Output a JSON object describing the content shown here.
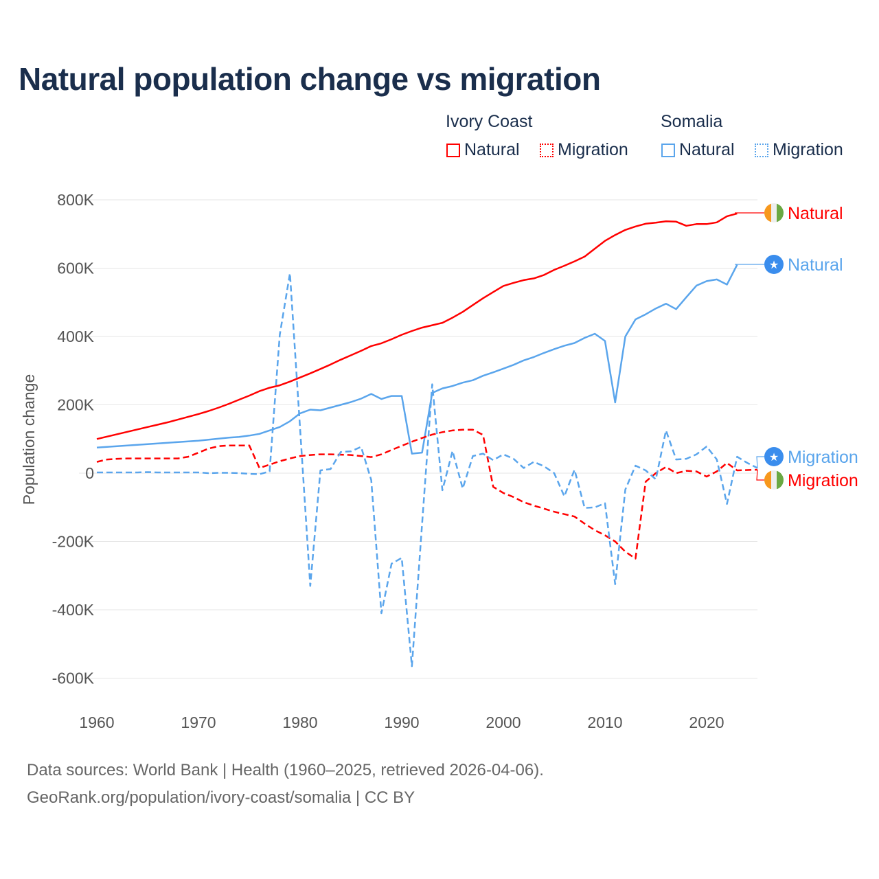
{
  "chart_data": {
    "type": "line",
    "title": "Natural population change vs migration",
    "xlabel": "",
    "ylabel": "Population change",
    "xlim": [
      1960,
      2025
    ],
    "ylim": [
      -600000,
      800000
    ],
    "x_ticks": [
      "1960",
      "1970",
      "1980",
      "1990",
      "2000",
      "2010",
      "2020"
    ],
    "y_ticks": [
      {
        "v": 800000,
        "label": "800K"
      },
      {
        "v": 600000,
        "label": "600K"
      },
      {
        "v": 400000,
        "label": "400K"
      },
      {
        "v": 200000,
        "label": "200K"
      },
      {
        "v": 0,
        "label": "0"
      },
      {
        "v": -200000,
        "label": "-200K"
      },
      {
        "v": -400000,
        "label": "-400K"
      },
      {
        "v": -600000,
        "label": "-600K"
      }
    ],
    "grid": true,
    "legend": {
      "groups": [
        {
          "label": "Ivory Coast",
          "items": [
            "Natural",
            "Migration"
          ]
        },
        {
          "label": "Somalia",
          "items": [
            "Natural",
            "Migration"
          ]
        }
      ],
      "placement": "top-right"
    },
    "colors": {
      "ivory_coast": "#ff0000",
      "somalia": "#5aa5ec",
      "flag_orange": "#f7981d",
      "flag_green": "#6aa843",
      "flag_white": "#eeeeee",
      "somalia_flag": "#3a8ded"
    },
    "series": [
      {
        "name": "Ivory Coast Natural",
        "country": "ivory_coast",
        "kind": "Natural",
        "start": 1960,
        "values": [
          100,
          107,
          114,
          121,
          128,
          135,
          142,
          149,
          157,
          165,
          173,
          182,
          192,
          203,
          215,
          227,
          240,
          250,
          257,
          268,
          280,
          292,
          305,
          318,
          332,
          345,
          358,
          372,
          380,
          392,
          405,
          416,
          426,
          433,
          440,
          455,
          472,
          492,
          512,
          530,
          548,
          557,
          565,
          570,
          580,
          595,
          607,
          620,
          634,
          657,
          680,
          697,
          712,
          722,
          730,
          733,
          737,
          736,
          724,
          729,
          729,
          734,
          752,
          760
        ]
      },
      {
        "name": "Somalia Natural",
        "country": "somalia",
        "kind": "Natural",
        "start": 1960,
        "values": [
          75,
          77,
          79,
          81,
          83,
          85,
          87,
          89,
          91,
          93,
          95,
          98,
          101,
          104,
          106,
          110,
          115,
          125,
          135,
          152,
          175,
          186,
          184,
          192,
          200,
          208,
          218,
          232,
          217,
          226,
          226,
          57,
          60,
          235,
          248,
          255,
          265,
          272,
          285,
          295,
          306,
          317,
          330,
          340,
          352,
          363,
          373,
          381,
          396,
          408,
          387,
          207,
          400,
          450,
          465,
          482,
          496,
          480,
          515,
          549,
          562,
          567,
          552,
          610
        ]
      },
      {
        "name": "Ivory Coast Migration",
        "country": "ivory_coast",
        "kind": "Migration",
        "start": 1960,
        "values": [
          33,
          40,
          42,
          43,
          43,
          43,
          43,
          43,
          43,
          48,
          60,
          72,
          79,
          81,
          81,
          81,
          15,
          25,
          35,
          43,
          50,
          53,
          55,
          55,
          54,
          53,
          50,
          47,
          55,
          68,
          80,
          92,
          103,
          113,
          120,
          125,
          127,
          127,
          112,
          -40,
          -58,
          -70,
          -85,
          -95,
          -104,
          -113,
          -120,
          -127,
          -148,
          -167,
          -182,
          -200,
          -230,
          -250,
          -25,
          0,
          18,
          0,
          7,
          5,
          -10,
          5,
          30,
          8,
          9,
          10
        ]
      },
      {
        "name": "Somalia Migration",
        "country": "somalia",
        "kind": "Migration",
        "start": 1960,
        "values": [
          2,
          2,
          2,
          2,
          2,
          3,
          2,
          2,
          2,
          2,
          2,
          0,
          1,
          1,
          0,
          -2,
          -3,
          5,
          405,
          585,
          130,
          -330,
          8,
          12,
          62,
          64,
          77,
          -20,
          -410,
          -265,
          -248,
          -565,
          -150,
          260,
          -50,
          65,
          -45,
          50,
          57,
          38,
          55,
          42,
          15,
          33,
          20,
          0,
          -68,
          10,
          -102,
          -100,
          -88,
          -325,
          -48,
          22,
          8,
          -18,
          125,
          40,
          42,
          55,
          78,
          40,
          -90,
          48,
          30,
          15
        ]
      }
    ],
    "value_unit_note": "values in thousands",
    "end_labels": {
      "natural": "Natural",
      "migration": "Migration"
    }
  },
  "legend_labels": {
    "ivory_coast": "Ivory Coast",
    "somalia": "Somalia",
    "natural": "Natural",
    "migration": "Migration"
  },
  "footer": {
    "line1": "Data sources: World Bank | Health (1960–2025, retrieved 2026-04-06).",
    "line2": "GeoRank.org/population/ivory-coast/somalia | CC BY"
  }
}
